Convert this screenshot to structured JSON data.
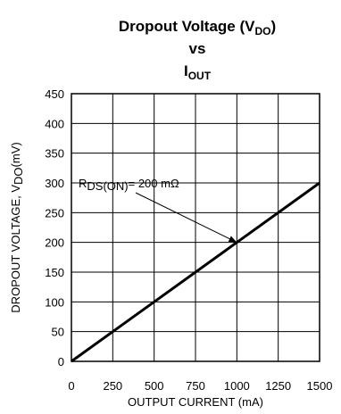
{
  "chart_data": {
    "type": "line",
    "title": {
      "line1_main": "Dropout Voltage (V",
      "line1_sub": "DO",
      "line1_end": ")",
      "line2": "vs",
      "line3_main": "I",
      "line3_sub": "OUT"
    },
    "xlabel": "OUTPUT CURRENT (mA)",
    "ylabel": {
      "main": "DROPOUT VOLTAGE, V",
      "sub": "DO",
      "end": "(mV)"
    },
    "xlim": [
      0,
      1500
    ],
    "ylim": [
      0,
      450
    ],
    "xticks": [
      0,
      250,
      500,
      750,
      1000,
      1250,
      1500
    ],
    "yticks": [
      0,
      50,
      100,
      150,
      200,
      250,
      300,
      350,
      400,
      450
    ],
    "grid": true,
    "series": [
      {
        "x": [
          0,
          1500
        ],
        "y": [
          0,
          300
        ],
        "color": "#000000"
      }
    ],
    "annotation": {
      "main": "R",
      "sub": "DS(ON)",
      "end": "= 200 mΩ",
      "point": [
        1000,
        200
      ]
    }
  }
}
